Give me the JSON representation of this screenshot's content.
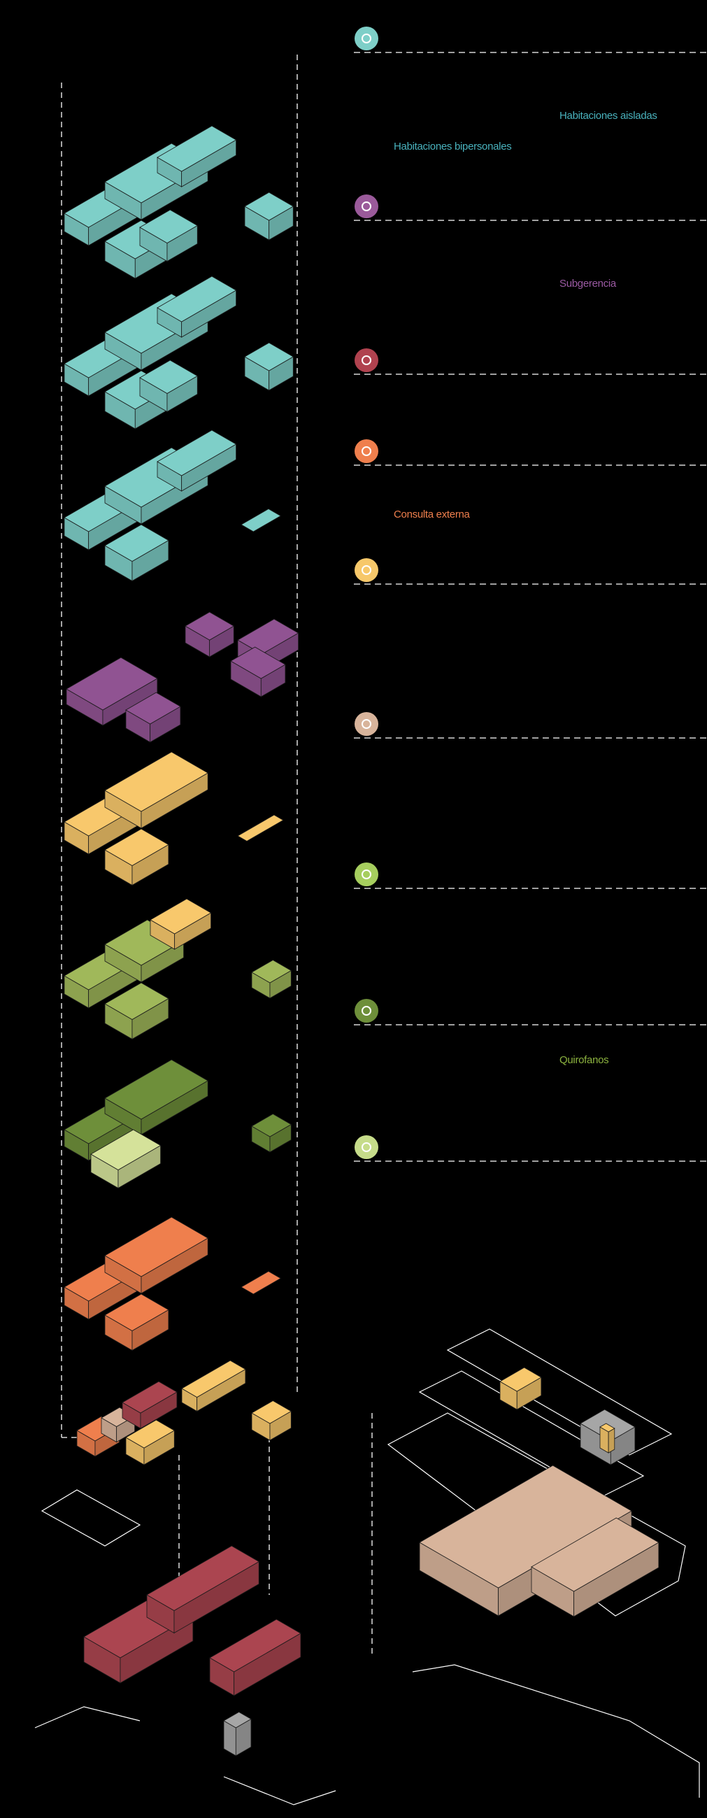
{
  "labels": {
    "habitaciones_aisladas": "Habitaciones aisladas",
    "habitaciones_bipersonales": "Habitaciones bipersonales",
    "subgerencia": "Subgerencia",
    "consulta_externa": "Consulta externa",
    "quirofanos": "Quirofanos"
  },
  "legend_icons": [
    {
      "name": "bed-icon",
      "color": "#7ecfc8"
    },
    {
      "name": "gear-icon",
      "color": "#9a5a9a"
    },
    {
      "name": "ambulance-icon",
      "color": "#b0424f"
    },
    {
      "name": "stethoscope-icon",
      "color": "#ef7f4d"
    },
    {
      "name": "building-icon",
      "color": "#f7c86a"
    },
    {
      "name": "cutlery-icon",
      "color": "#d8b49b"
    },
    {
      "name": "bandage-icon",
      "color": "#a6ce5e"
    },
    {
      "name": "lab-icon",
      "color": "#6e8f3a"
    },
    {
      "name": "flask-icon",
      "color": "#c6dc8a"
    }
  ],
  "colors": {
    "teal": "#7ecfc8",
    "purple": "#905392",
    "yellow": "#f8c86c",
    "green_light": "#a0b85a",
    "green_dark": "#6e8f3a",
    "lime": "#d5e29a",
    "orange": "#ef7f4d",
    "red": "#ab4550",
    "tan": "#d8b49b",
    "gray": "#a6a6a6",
    "label_teal": "#49b2bd",
    "label_purple": "#9b5aa3",
    "label_orange": "#ef7f4d",
    "label_green": "#8cb33f"
  }
}
